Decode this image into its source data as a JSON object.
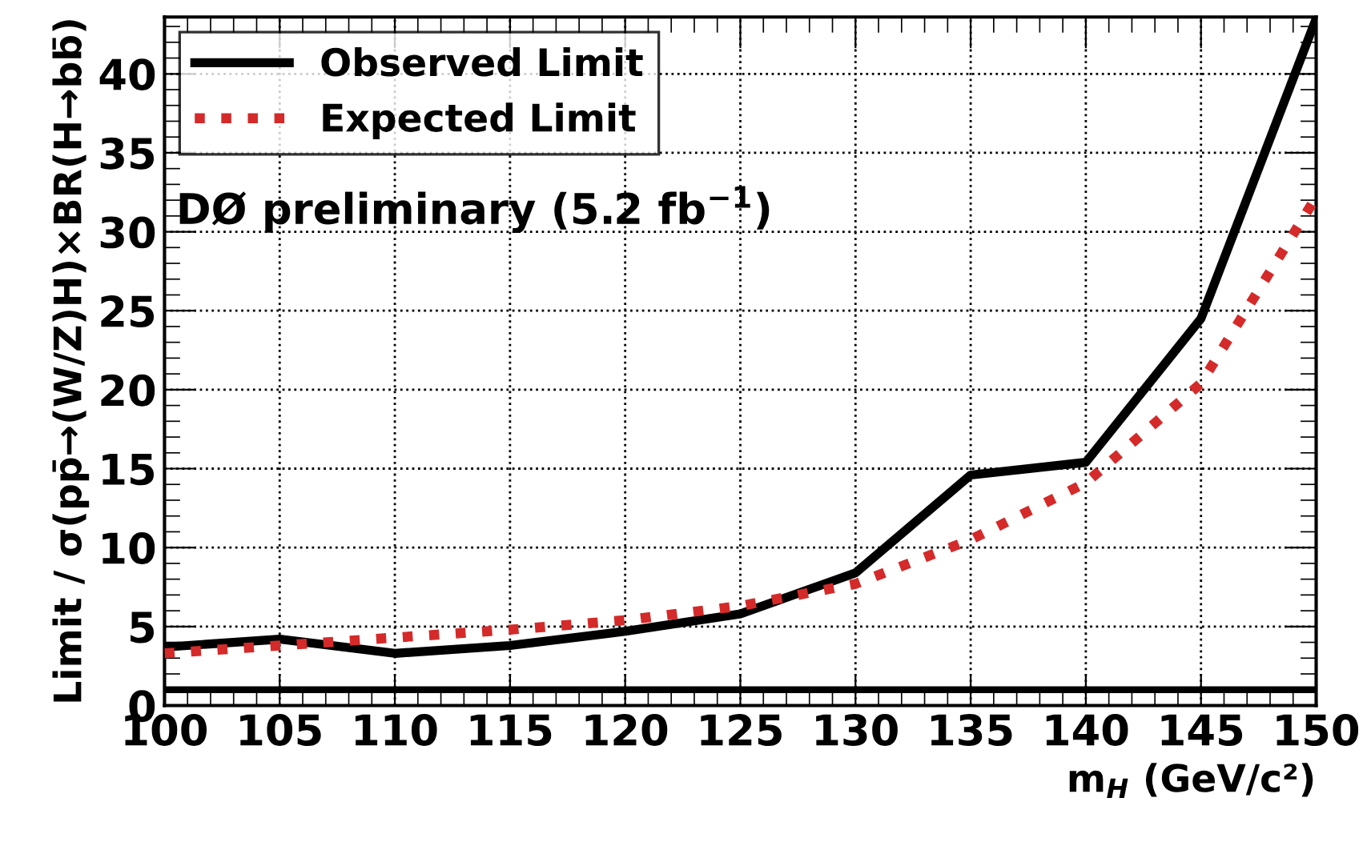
{
  "chart_data": {
    "type": "line",
    "xlabel": "m$_{H}$ (GeV/c²)",
    "ylabel": "Limit / σ(pp̄→(W/Z)H)×BR(H→bb̄)",
    "x": [
      100,
      105,
      110,
      115,
      120,
      125,
      130,
      135,
      140,
      145,
      150
    ],
    "series": [
      {
        "name": "Observed Limit",
        "color": "#000000",
        "line_style": "solid",
        "values": [
          3.7,
          4.2,
          3.3,
          3.8,
          4.7,
          5.8,
          8.4,
          14.6,
          15.4,
          24.5,
          43.5
        ]
      },
      {
        "name": "Expected Limit",
        "color": "#d42a2a",
        "line_style": "dotted",
        "values": [
          3.3,
          3.8,
          4.3,
          4.8,
          5.4,
          6.3,
          7.7,
          10.5,
          14.1,
          20.4,
          32.2
        ]
      }
    ],
    "annotations": [
      "DØ preliminary (5.2 fb$^{−1}$)"
    ],
    "ref_lines": [
      {
        "axis": "y",
        "value": 1,
        "color": "#000000",
        "line_style": "solid"
      }
    ],
    "xlim": [
      100,
      150
    ],
    "xticks": [
      100,
      105,
      110,
      115,
      120,
      125,
      130,
      135,
      140,
      145,
      150
    ],
    "ylim": [
      0,
      43.6
    ],
    "yticks": [
      0,
      5,
      10,
      15,
      20,
      25,
      30,
      35,
      40
    ],
    "grid": true,
    "legend": "top left",
    "marker": "none"
  }
}
